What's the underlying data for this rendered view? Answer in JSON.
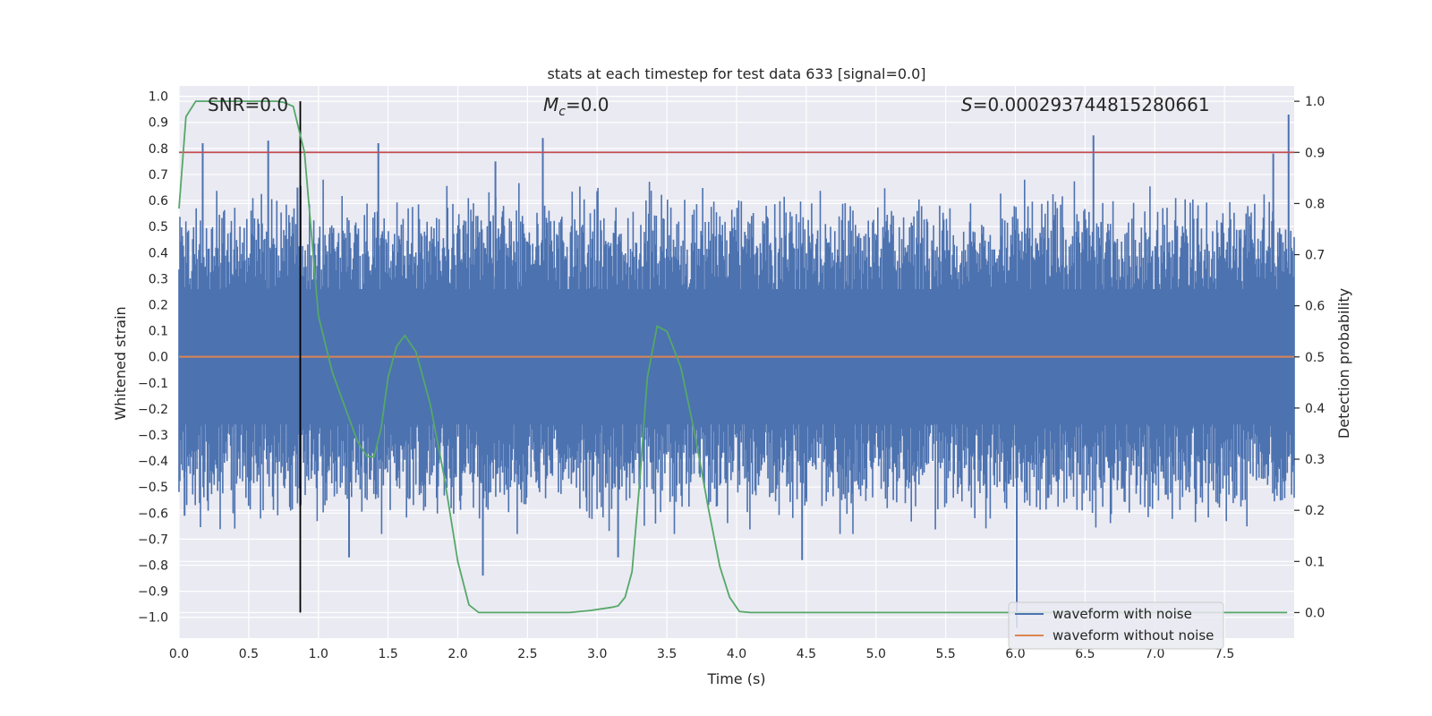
{
  "chart_data": {
    "type": "line",
    "title": "stats at each timestep for test data 633 [signal=0.0]",
    "xlabel": "Time (s)",
    "ylabel_left": "Whitened strain",
    "ylabel_right": "Detection probability",
    "xlim": [
      0.0,
      8.0
    ],
    "ylim_left": [
      -1.08,
      1.04
    ],
    "ylim_right": [
      -0.05,
      1.03
    ],
    "x_ticks": [
      0.0,
      0.5,
      1.0,
      1.5,
      2.0,
      2.5,
      3.0,
      3.5,
      4.0,
      4.5,
      5.0,
      5.5,
      6.0,
      6.5,
      7.0,
      7.5
    ],
    "x_tick_labels": [
      "0.0",
      "0.5",
      "1.0",
      "1.5",
      "2.0",
      "2.5",
      "3.0",
      "3.5",
      "4.0",
      "4.5",
      "5.0",
      "5.5",
      "6.0",
      "6.5",
      "7.0",
      "7.5"
    ],
    "y_left_ticks": [
      1.0,
      0.9,
      0.8,
      0.7,
      0.6,
      0.5,
      0.4,
      0.3,
      0.2,
      0.1,
      0.0,
      -0.1,
      -0.2,
      -0.3,
      -0.4,
      -0.5,
      -0.6,
      -0.7,
      -0.8,
      -0.9,
      -1.0
    ],
    "y_left_tick_labels": [
      "1.0",
      "0.9",
      "0.8",
      "0.7",
      "0.6",
      "0.5",
      "0.4",
      "0.3",
      "0.2",
      "0.1",
      "0.0",
      "−0.1",
      "−0.2",
      "−0.3",
      "−0.4",
      "−0.5",
      "−0.6",
      "−0.7",
      "−0.8",
      "−0.9",
      "−1.0"
    ],
    "y_right_ticks": [
      1.0,
      0.9,
      0.8,
      0.7,
      0.6,
      0.5,
      0.4,
      0.3,
      0.2,
      0.1,
      0.0
    ],
    "y_right_tick_labels": [
      "1.0",
      "0.9",
      "0.8",
      "0.7",
      "0.6",
      "0.5",
      "0.4",
      "0.3",
      "0.2",
      "0.1",
      "0.0"
    ],
    "annotations": {
      "snr": "SNR=0.0",
      "mc_symbol": "M",
      "mc_subscript": "c",
      "mc_value": "=0.0",
      "s_symbol": "S",
      "s_value": "=0.000293744815280661"
    },
    "threshold_right": 0.9,
    "vertical_marker_x": 0.87,
    "noise_envelope": {
      "typical_amplitude": 0.42,
      "peaks": [
        {
          "x": 0.17,
          "y": 0.82
        },
        {
          "x": 0.64,
          "y": 0.83
        },
        {
          "x": 0.85,
          "y": 0.65
        },
        {
          "x": 1.43,
          "y": 0.82
        },
        {
          "x": 2.27,
          "y": 0.75
        },
        {
          "x": 2.61,
          "y": 0.84
        },
        {
          "x": 6.56,
          "y": 0.85
        },
        {
          "x": 7.96,
          "y": 0.93
        },
        {
          "x": 7.85,
          "y": 0.78
        },
        {
          "x": 1.22,
          "y": -0.77
        },
        {
          "x": 2.18,
          "y": -0.84
        },
        {
          "x": 3.15,
          "y": -0.77
        },
        {
          "x": 4.47,
          "y": -0.78
        },
        {
          "x": 6.01,
          "y": -1.04
        },
        {
          "x": 0.04,
          "y": -0.61
        }
      ]
    },
    "series": [
      {
        "name": "waveform with noise",
        "color": "#4c72b0",
        "axis": "left"
      },
      {
        "name": "waveform without noise",
        "color": "#dd8452",
        "axis": "left",
        "x": [
          0.0,
          8.0
        ],
        "y": [
          0.0,
          0.0
        ]
      },
      {
        "name": "detection probability",
        "color": "#55a868",
        "axis": "right",
        "x": [
          0.0,
          0.05,
          0.12,
          0.2,
          0.3,
          0.5,
          0.7,
          0.75,
          0.82,
          0.9,
          1.0,
          1.1,
          1.2,
          1.28,
          1.35,
          1.4,
          1.45,
          1.5,
          1.56,
          1.62,
          1.7,
          1.8,
          1.9,
          2.0,
          2.08,
          2.15,
          2.3,
          2.6,
          2.8,
          2.95,
          3.1,
          3.15,
          3.2,
          3.25,
          3.3,
          3.36,
          3.43,
          3.5,
          3.6,
          3.7,
          3.8,
          3.88,
          3.95,
          4.02,
          4.1,
          4.5,
          5.0,
          6.0,
          7.0,
          7.95
        ],
        "y": [
          0.79,
          0.97,
          1.0,
          1.0,
          1.0,
          1.0,
          1.0,
          0.998,
          0.99,
          0.9,
          0.58,
          0.47,
          0.395,
          0.335,
          0.305,
          0.305,
          0.36,
          0.46,
          0.52,
          0.542,
          0.51,
          0.41,
          0.27,
          0.1,
          0.015,
          0.0,
          0.0,
          0.0,
          0.0,
          0.004,
          0.01,
          0.013,
          0.03,
          0.08,
          0.24,
          0.46,
          0.56,
          0.55,
          0.48,
          0.35,
          0.2,
          0.09,
          0.03,
          0.002,
          0.0,
          0.0,
          0.0,
          0.0,
          0.0,
          0.0
        ]
      }
    ],
    "legend": [
      "waveform with noise",
      "waveform without noise"
    ],
    "legend_position": "lower-right",
    "grid": true
  },
  "colors": {
    "background": "#eaeaf2",
    "grid": "#ffffff",
    "noise": "#4c72b0",
    "clean": "#dd8452",
    "prob": "#55a868",
    "threshold": "#c44e52",
    "marker": "#000000"
  }
}
